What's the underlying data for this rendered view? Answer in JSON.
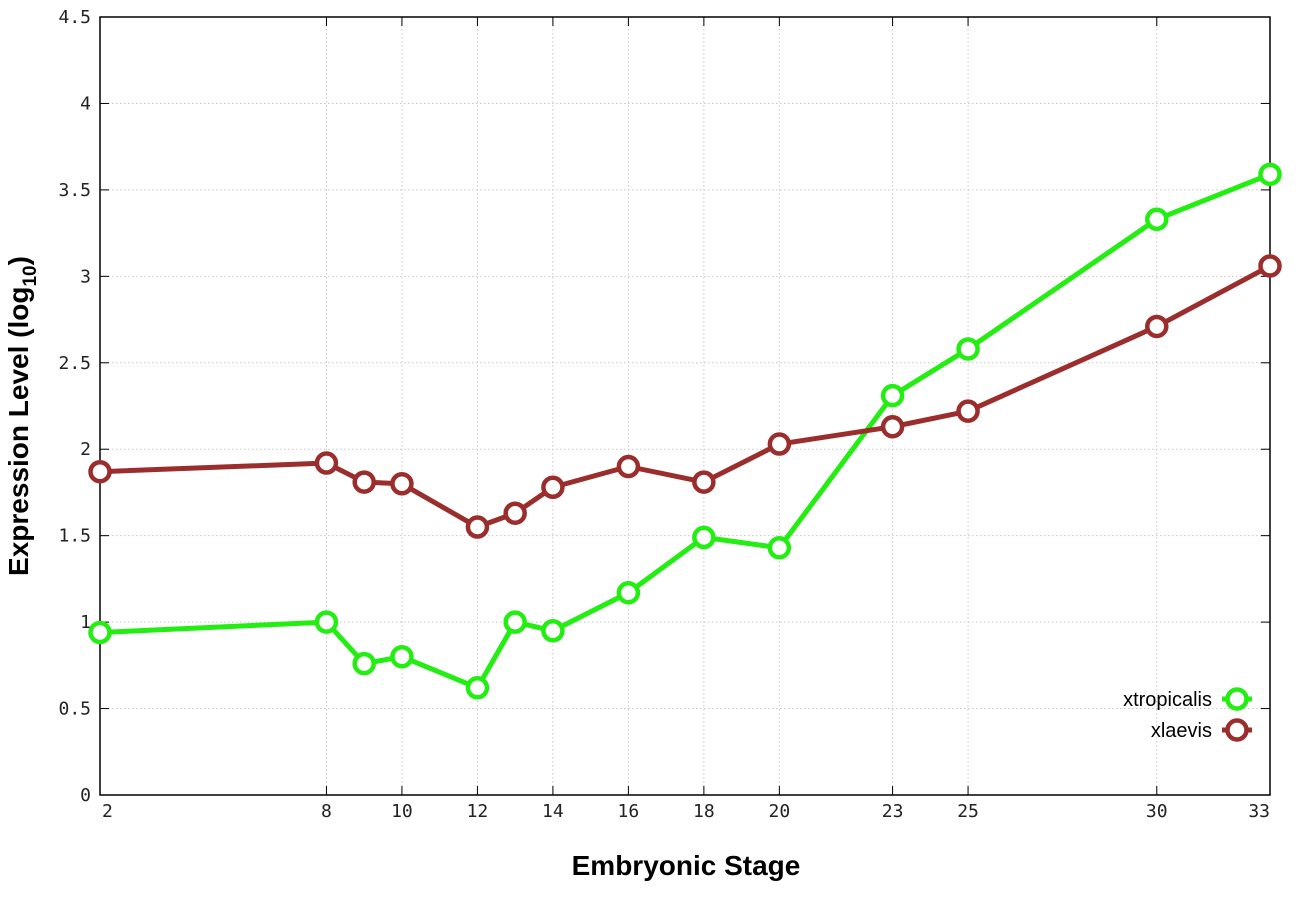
{
  "chart_data": {
    "type": "line",
    "xlabel": "Embryonic Stage",
    "ylabel_main": "Expression Level (log",
    "ylabel_sub": "10",
    "ylabel_close": ")",
    "x_tick_labels": [
      "2",
      "8",
      "10",
      "12",
      "14",
      "16",
      "18",
      "20",
      "23",
      "25",
      "30",
      "33"
    ],
    "y_tick_labels": [
      "0",
      "0.5",
      "1",
      "1.5",
      "2",
      "2.5",
      "3",
      "3.5",
      "4",
      "4.5"
    ],
    "ylim": [
      0,
      4.5
    ],
    "grid": true,
    "legend_position": "bottom-right",
    "x": [
      "2",
      "8",
      "9",
      "10",
      "12",
      "13",
      "14",
      "16",
      "18",
      "20",
      "23",
      "25",
      "30",
      "33"
    ],
    "series": [
      {
        "name": "xtropicalis",
        "color": "#22ee11",
        "values": [
          0.94,
          1.0,
          0.76,
          0.8,
          0.62,
          1.0,
          0.95,
          1.17,
          1.49,
          1.43,
          2.31,
          2.58,
          3.33,
          3.59
        ]
      },
      {
        "name": "xlaevis",
        "color": "#9b2d2d",
        "values": [
          1.87,
          1.92,
          1.81,
          1.8,
          1.55,
          1.63,
          1.78,
          1.9,
          1.81,
          2.03,
          2.13,
          2.22,
          2.71,
          3.06
        ]
      }
    ]
  }
}
